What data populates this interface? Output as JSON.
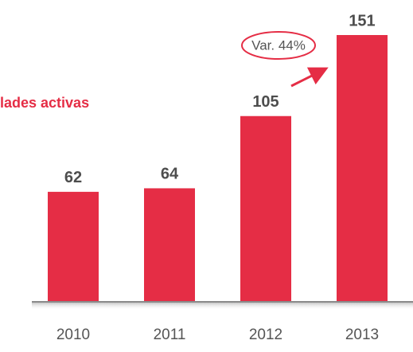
{
  "chart_data": {
    "type": "bar",
    "title": "lades activas",
    "annotation": "Var. 44%",
    "categories": [
      "2010",
      "2011",
      "2012",
      "2013"
    ],
    "values": [
      62,
      64,
      105,
      151
    ],
    "color": "#e52d45"
  }
}
